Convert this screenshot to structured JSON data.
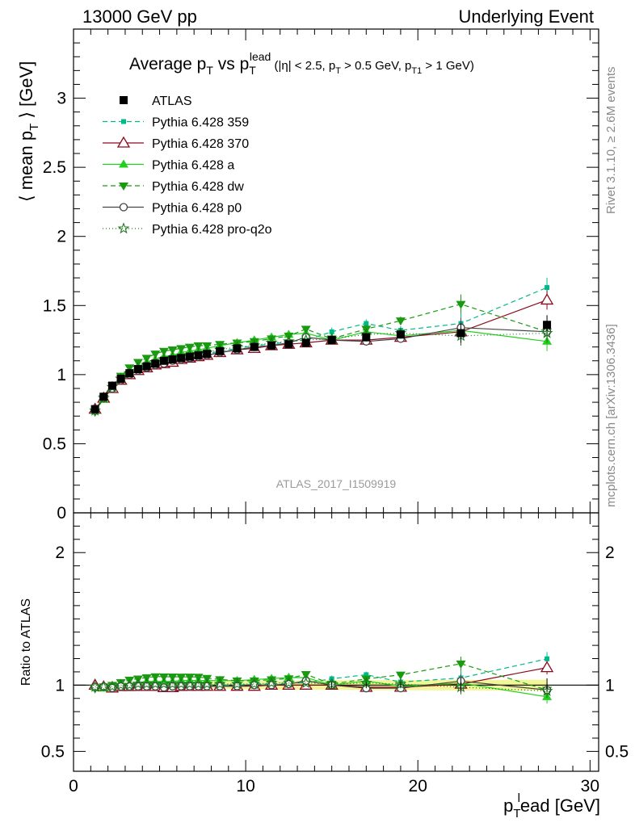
{
  "header": {
    "left": "13000 GeV pp",
    "right": "Underlying Event"
  },
  "side_labels": {
    "rivet": "Rivet 3.1.10, ≥ 2.6M events",
    "mcplots": "mcplots.cern.ch [arXiv:1306.3436]"
  },
  "watermark": "ATLAS_2017_I1509919",
  "colors": {
    "atlas": "#000000",
    "p359": "#00b98a",
    "p370": "#8b0a1e",
    "pa": "#22d11e",
    "pdw": "#1a9a10",
    "pp0": "#444444",
    "pq2o": "#1a7a1a",
    "ref_band": "#f2f59a"
  },
  "chart_data": {
    "type": "line",
    "title": {
      "pre": "Average p",
      "pre_sub": "T",
      "mid": " vs p",
      "mid_sub": "T",
      "mid_sup": "lead",
      "cuts": [
        {
          "t": " (|η| < 2.5, p"
        },
        {
          "t": "T",
          "sub": true
        },
        {
          "t": " > 0.5 GeV, p"
        },
        {
          "t": "T1",
          "sub": true
        },
        {
          "t": " > 1 GeV)"
        }
      ]
    },
    "xlabel": {
      "main": "p",
      "sub": "T",
      "sup": "l",
      "rest": "ead [GeV]"
    },
    "ylabel": {
      "open": "⟨ mean p",
      "sub": "T",
      "close": " ⟩ [GeV]"
    },
    "ratio_ylabel": "Ratio to ATLAS",
    "xlim": [
      0,
      30.5
    ],
    "ylim": [
      0,
      3.5
    ],
    "ratio_ylim": [
      0.35,
      2.3
    ],
    "x_ticks": [
      0,
      10,
      20,
      30
    ],
    "y_ticks": [
      0,
      0.5,
      1,
      1.5,
      2,
      2.5,
      3
    ],
    "y_tick_labels": [
      "0",
      "0.5",
      "1",
      "1.5",
      "2",
      "2.5",
      "3"
    ],
    "ratio_ticks": [
      0.5,
      1,
      2
    ],
    "ratio_tick_labels": [
      "0.5",
      "1",
      "2"
    ],
    "legend_position": "top-left",
    "x": [
      1.25,
      1.75,
      2.25,
      2.75,
      3.25,
      3.75,
      4.25,
      4.75,
      5.25,
      5.75,
      6.25,
      6.75,
      7.25,
      7.75,
      8.5,
      9.5,
      10.5,
      11.5,
      12.5,
      13.5,
      15.0,
      17.0,
      19.0,
      22.5,
      27.5
    ],
    "series": [
      {
        "name": "ATLAS",
        "key": "atlas",
        "marker": "square",
        "dash": "none",
        "y": [
          0.75,
          0.84,
          0.92,
          0.97,
          1.01,
          1.04,
          1.06,
          1.08,
          1.1,
          1.11,
          1.12,
          1.13,
          1.14,
          1.15,
          1.17,
          1.19,
          1.2,
          1.21,
          1.22,
          1.23,
          1.25,
          1.27,
          1.29,
          1.3,
          1.36
        ]
      },
      {
        "name": "Pythia 6.428 359",
        "key": "p359",
        "marker": "smallsquare",
        "dash": "6,4",
        "y": [
          0.74,
          0.83,
          0.91,
          0.97,
          1.01,
          1.04,
          1.06,
          1.08,
          1.1,
          1.11,
          1.12,
          1.13,
          1.14,
          1.15,
          1.17,
          1.19,
          1.21,
          1.22,
          1.24,
          1.25,
          1.31,
          1.37,
          1.32,
          1.37,
          1.63
        ]
      },
      {
        "name": "Pythia 6.428 370",
        "key": "p370",
        "marker": "opentriangle",
        "dash": "none",
        "y": [
          0.75,
          0.83,
          0.9,
          0.96,
          1.0,
          1.03,
          1.05,
          1.07,
          1.08,
          1.09,
          1.11,
          1.12,
          1.13,
          1.14,
          1.16,
          1.18,
          1.19,
          1.21,
          1.22,
          1.23,
          1.25,
          1.25,
          1.27,
          1.31,
          1.54
        ]
      },
      {
        "name": "Pythia 6.428 a",
        "key": "pa",
        "marker": "triangle",
        "dash": "none",
        "y": [
          0.74,
          0.82,
          0.91,
          0.97,
          1.02,
          1.06,
          1.09,
          1.11,
          1.13,
          1.14,
          1.16,
          1.17,
          1.18,
          1.19,
          1.21,
          1.23,
          1.25,
          1.27,
          1.29,
          1.3,
          1.25,
          1.31,
          1.28,
          1.32,
          1.24
        ]
      },
      {
        "name": "Pythia 6.428 dw",
        "key": "pdw",
        "marker": "downtriangle",
        "dash": "6,4",
        "y": [
          0.73,
          0.83,
          0.92,
          0.99,
          1.05,
          1.09,
          1.12,
          1.15,
          1.17,
          1.18,
          1.19,
          1.2,
          1.21,
          1.21,
          1.22,
          1.23,
          1.24,
          1.26,
          1.28,
          1.33,
          1.26,
          1.33,
          1.39,
          1.51,
          1.31
        ]
      },
      {
        "name": "Pythia 6.428 p0",
        "key": "pp0",
        "marker": "opencircle",
        "dash": "none",
        "y": [
          0.74,
          0.83,
          0.9,
          0.96,
          1.0,
          1.03,
          1.05,
          1.07,
          1.08,
          1.1,
          1.11,
          1.12,
          1.13,
          1.14,
          1.16,
          1.18,
          1.2,
          1.21,
          1.23,
          1.27,
          1.25,
          1.24,
          1.26,
          1.34,
          1.31
        ]
      },
      {
        "name": "Pythia 6.428 pro-q2o",
        "key": "pq2o",
        "marker": "star",
        "dash": "1,3",
        "y": [
          0.74,
          0.83,
          0.91,
          0.97,
          1.01,
          1.05,
          1.07,
          1.09,
          1.11,
          1.12,
          1.13,
          1.14,
          1.15,
          1.16,
          1.18,
          1.2,
          1.21,
          1.23,
          1.24,
          1.25,
          1.26,
          1.29,
          1.3,
          1.28,
          1.3
        ]
      }
    ]
  }
}
